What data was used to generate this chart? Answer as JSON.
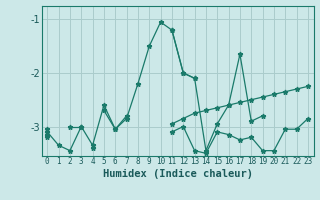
{
  "xlabel": "Humidex (Indice chaleur)",
  "background_color": "#cce8e8",
  "grid_color": "#aacccc",
  "line_color": "#1a7a6a",
  "xlim": [
    -0.5,
    23.5
  ],
  "ylim": [
    -3.55,
    -0.75
  ],
  "yticks": [
    -3,
    -2,
    -1
  ],
  "xticks": [
    0,
    1,
    2,
    3,
    4,
    5,
    6,
    7,
    8,
    9,
    10,
    11,
    12,
    13,
    14,
    15,
    16,
    17,
    18,
    19,
    20,
    21,
    22,
    23
  ],
  "series": [
    [
      -3.1,
      -3.35,
      -3.45,
      -3.0,
      -3.35,
      -2.6,
      -3.05,
      -2.85,
      -2.2,
      -1.5,
      -1.05,
      -1.2,
      -2.0,
      -2.1,
      -3.45,
      -2.95,
      -2.6,
      -1.65,
      -2.9,
      -2.8,
      null,
      null,
      null,
      null
    ],
    [
      null,
      null,
      null,
      null,
      null,
      null,
      null,
      null,
      null,
      null,
      null,
      -1.2,
      -2.0,
      -2.1,
      null,
      null,
      null,
      null,
      null,
      null,
      null,
      null,
      null,
      null
    ],
    [
      -3.15,
      null,
      null,
      -3.0,
      null,
      null,
      null,
      null,
      null,
      null,
      null,
      -2.95,
      -2.85,
      -2.75,
      -2.7,
      -2.65,
      -2.6,
      -2.55,
      -2.5,
      -2.45,
      -2.4,
      -2.35,
      -2.3,
      -2.25
    ],
    [
      -3.2,
      null,
      null,
      null,
      -3.4,
      null,
      null,
      null,
      null,
      null,
      null,
      -3.1,
      -3.0,
      -3.45,
      -3.5,
      -3.1,
      -3.15,
      -3.25,
      -3.2,
      -3.45,
      -3.45,
      -3.05,
      -3.05,
      -2.85
    ],
    [
      -3.05,
      null,
      -3.0,
      -3.0,
      null,
      -2.7,
      -3.05,
      -2.8,
      null,
      null,
      null,
      null,
      null,
      null,
      null,
      null,
      null,
      null,
      null,
      null,
      null,
      null,
      null,
      null
    ]
  ]
}
